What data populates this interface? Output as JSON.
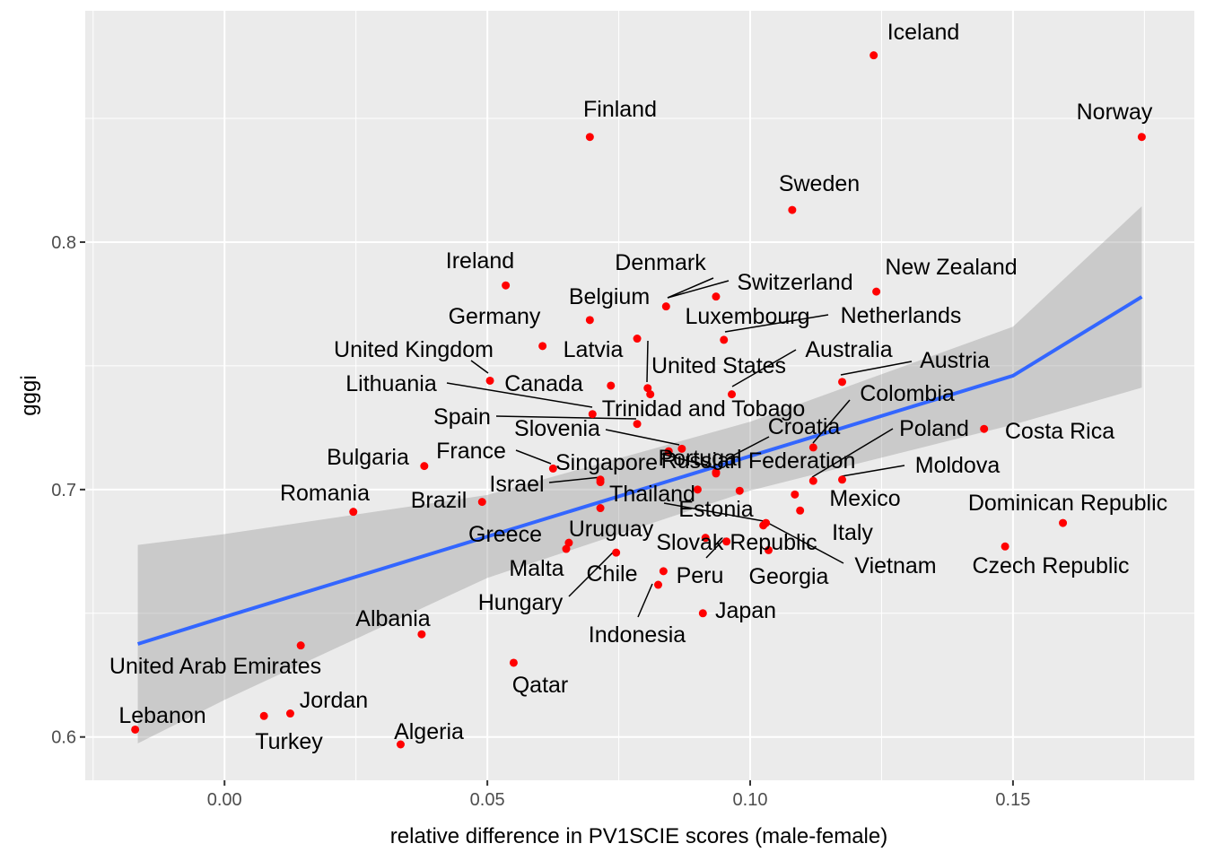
{
  "chart_data": {
    "type": "scatter",
    "xlabel": "relative difference in PV1SCIE scores (male-female)",
    "ylabel": "gggi",
    "xlim": [
      -0.0265,
      0.1845
    ],
    "ylim": [
      0.5825,
      0.8935
    ],
    "x_ticks": [
      "0.00",
      "0.05",
      "0.10",
      "0.15"
    ],
    "y_ticks": [
      "0.6",
      "0.7",
      "0.8"
    ],
    "x_tick_values": [
      0.0,
      0.05,
      0.1,
      0.15
    ],
    "y_tick_values": [
      0.6,
      0.7,
      0.8
    ],
    "grid": true,
    "point_color": "#ff0000",
    "trend_color": "#3366ff",
    "ribbon_color": "#999999",
    "panel_bg": "#ebebeb",
    "trend": {
      "method": "linear fit with confidence band",
      "x": [
        -0.0165,
        0.0,
        0.05,
        0.1,
        0.15,
        0.1745
      ],
      "y": [
        0.6376,
        0.6485,
        0.681,
        0.7135,
        0.746,
        0.7779
      ],
      "lower": [
        0.5974,
        0.615,
        0.6643,
        0.6996,
        0.7262,
        0.7412
      ],
      "upper": [
        0.6776,
        0.682,
        0.6978,
        0.7274,
        0.7658,
        0.8145
      ]
    },
    "points": [
      {
        "name": "Iceland",
        "x": 0.1235,
        "y": 0.8755
      },
      {
        "name": "Norway",
        "x": 0.1745,
        "y": 0.8425
      },
      {
        "name": "Finland",
        "x": 0.0695,
        "y": 0.8425
      },
      {
        "name": "Sweden",
        "x": 0.108,
        "y": 0.813
      },
      {
        "name": "Ireland",
        "x": 0.0535,
        "y": 0.7825
      },
      {
        "name": "New Zealand",
        "x": 0.124,
        "y": 0.78
      },
      {
        "name": "Switzerland",
        "x": 0.0935,
        "y": 0.778
      },
      {
        "name": "Denmark",
        "x": 0.084,
        "y": 0.774
      },
      {
        "name": "Belgium",
        "x": 0.0695,
        "y": 0.7685
      },
      {
        "name": "Netherlands",
        "x": 0.095,
        "y": 0.7605
      },
      {
        "name": "Luxembourg",
        "x": 0.0785,
        "y": 0.761
      },
      {
        "name": "Germany",
        "x": 0.0605,
        "y": 0.758
      },
      {
        "name": "Austria",
        "x": 0.1175,
        "y": 0.7435
      },
      {
        "name": "United Kingdom",
        "x": 0.0505,
        "y": 0.744
      },
      {
        "name": "Latvia",
        "x": 0.0735,
        "y": 0.742
      },
      {
        "name": "United States",
        "x": 0.0805,
        "y": 0.741
      },
      {
        "name": "Canada",
        "x": 0.081,
        "y": 0.7385
      },
      {
        "name": "Australia",
        "x": 0.0965,
        "y": 0.7385
      },
      {
        "name": "Lithuania",
        "x": 0.07,
        "y": 0.7305
      },
      {
        "name": "Trinidad and Tobago",
        "x": 0.0785,
        "y": 0.7265
      },
      {
        "name": "Costa Rica",
        "x": 0.1445,
        "y": 0.7245
      },
      {
        "name": "Colombia",
        "x": 0.112,
        "y": 0.717
      },
      {
        "name": "Croatia",
        "x": 0.087,
        "y": 0.7165
      },
      {
        "name": "Slovenia",
        "x": 0.0845,
        "y": 0.7155
      },
      {
        "name": "Spain",
        "x": 0.0935,
        "y": 0.7065
      },
      {
        "name": "Bulgaria",
        "x": 0.038,
        "y": 0.7095
      },
      {
        "name": "France",
        "x": 0.0625,
        "y": 0.7085
      },
      {
        "name": "Russian Federation",
        "x": 0.0935,
        "y": 0.707
      },
      {
        "name": "Poland",
        "x": 0.112,
        "y": 0.7035
      },
      {
        "name": "Moldova",
        "x": 0.1175,
        "y": 0.704
      },
      {
        "name": "Singapore",
        "x": 0.0715,
        "y": 0.704
      },
      {
        "name": "Portugal",
        "x": 0.09,
        "y": 0.7
      },
      {
        "name": "Israel",
        "x": 0.0715,
        "y": 0.703
      },
      {
        "name": "Slovak Republic",
        "x": 0.098,
        "y": 0.6995
      },
      {
        "name": "Mexico",
        "x": 0.1085,
        "y": 0.698
      },
      {
        "name": "Brazil",
        "x": 0.049,
        "y": 0.695
      },
      {
        "name": "Thailand",
        "x": 0.0715,
        "y": 0.6925
      },
      {
        "name": "Italy",
        "x": 0.1095,
        "y": 0.6915
      },
      {
        "name": "Romania",
        "x": 0.0245,
        "y": 0.691
      },
      {
        "name": "Dominican Republic",
        "x": 0.1595,
        "y": 0.6865
      },
      {
        "name": "Estonia",
        "x": 0.103,
        "y": 0.6865
      },
      {
        "name": "Vietnam",
        "x": 0.1025,
        "y": 0.6855
      },
      {
        "name": "Uruguay",
        "x": 0.0915,
        "y": 0.6805
      },
      {
        "name": "Greece",
        "x": 0.0655,
        "y": 0.6785
      },
      {
        "name": "Peru",
        "x": 0.0955,
        "y": 0.679
      },
      {
        "name": "Czech Republic",
        "x": 0.1485,
        "y": 0.677
      },
      {
        "name": "Malta",
        "x": 0.065,
        "y": 0.676
      },
      {
        "name": "Georgia",
        "x": 0.1035,
        "y": 0.6755
      },
      {
        "name": "Hungary",
        "x": 0.0745,
        "y": 0.6745
      },
      {
        "name": "Chile",
        "x": 0.0835,
        "y": 0.667
      },
      {
        "name": "Indonesia",
        "x": 0.0825,
        "y": 0.6615
      },
      {
        "name": "Japan",
        "x": 0.091,
        "y": 0.65
      },
      {
        "name": "Albania",
        "x": 0.0375,
        "y": 0.6415
      },
      {
        "name": "United Arab Emirates",
        "x": 0.0145,
        "y": 0.637
      },
      {
        "name": "Qatar",
        "x": 0.055,
        "y": 0.63
      },
      {
        "name": "Jordan",
        "x": 0.0125,
        "y": 0.6095
      },
      {
        "name": "Turkey",
        "x": 0.0075,
        "y": 0.6085
      },
      {
        "name": "Lebanon",
        "x": -0.017,
        "y": 0.603
      },
      {
        "name": "Algeria",
        "x": 0.0335,
        "y": 0.597
      }
    ]
  }
}
